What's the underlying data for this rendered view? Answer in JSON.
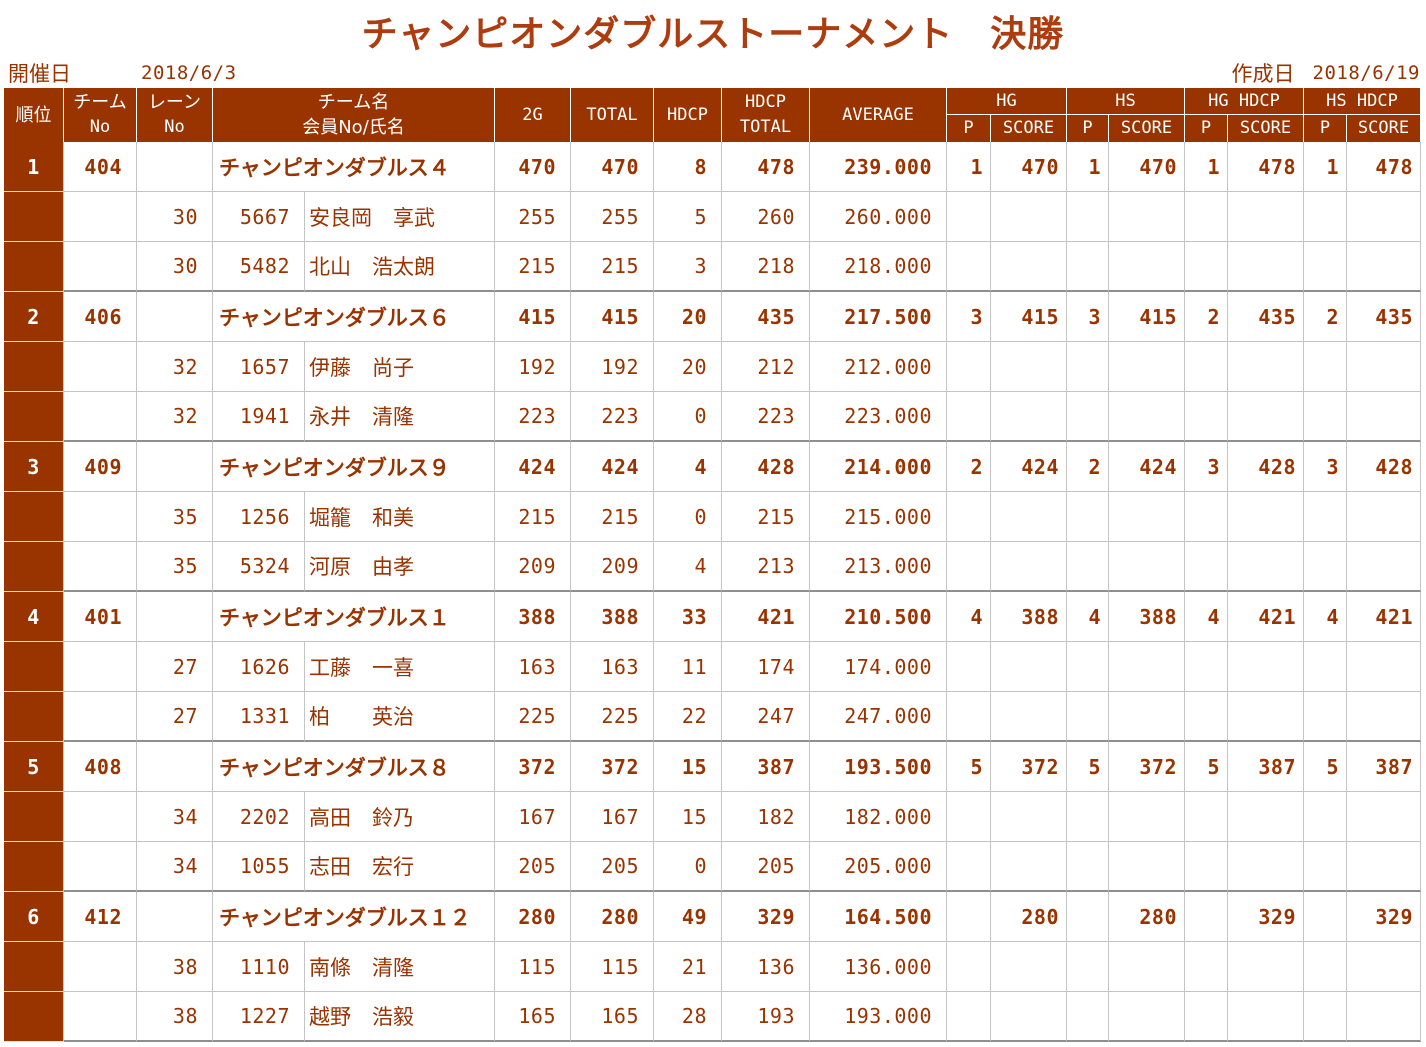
{
  "title": "チャンピオンダブルストーナメント　決勝",
  "meta": {
    "held_label": "開催日",
    "held_date": "2018/6/3",
    "created_label": "作成日",
    "created_date": "2018/6/19"
  },
  "colors": {
    "title": "#AD3D0E",
    "header_bg": "#993300",
    "text": "#993300",
    "grid_line": "#C4C4C4",
    "team_separator": "#8F8F8F"
  },
  "header": {
    "rank": "順位",
    "team_no": [
      "チーム",
      "No"
    ],
    "lane_no": [
      "レーン",
      "No"
    ],
    "name": [
      "チーム名",
      "会員No/氏名"
    ],
    "g2": "2G",
    "total": "TOTAL",
    "hdcp": "HDCP",
    "hdcp_total": [
      "HDCP",
      "TOTAL"
    ],
    "average": "AVERAGE",
    "groups": {
      "hg": "HG",
      "hs": "HS",
      "hgh": "HG HDCP",
      "hsh": "HS HDCP"
    },
    "p": "P",
    "score": "SCORE"
  },
  "teams": [
    {
      "rank": "1",
      "team_no": "404",
      "name": "チャンピオンダブルス４",
      "g2": "470",
      "total": "470",
      "hdcp": "8",
      "hdcp_total": "478",
      "average": "239.000",
      "hg": {
        "p": "1",
        "score": "470"
      },
      "hs": {
        "p": "1",
        "score": "470"
      },
      "hgh": {
        "p": "1",
        "score": "478"
      },
      "hsh": {
        "p": "1",
        "score": "478"
      },
      "members": [
        {
          "lane": "30",
          "member_no": "5667",
          "name": "安良岡　享武",
          "g2": "255",
          "total": "255",
          "hdcp": "5",
          "hdcp_total": "260",
          "average": "260.000"
        },
        {
          "lane": "30",
          "member_no": "5482",
          "name": "北山　浩太朗",
          "g2": "215",
          "total": "215",
          "hdcp": "3",
          "hdcp_total": "218",
          "average": "218.000"
        }
      ]
    },
    {
      "rank": "2",
      "team_no": "406",
      "name": "チャンピオンダブルス６",
      "g2": "415",
      "total": "415",
      "hdcp": "20",
      "hdcp_total": "435",
      "average": "217.500",
      "hg": {
        "p": "3",
        "score": "415"
      },
      "hs": {
        "p": "3",
        "score": "415"
      },
      "hgh": {
        "p": "2",
        "score": "435"
      },
      "hsh": {
        "p": "2",
        "score": "435"
      },
      "members": [
        {
          "lane": "32",
          "member_no": "1657",
          "name": "伊藤　尚子",
          "g2": "192",
          "total": "192",
          "hdcp": "20",
          "hdcp_total": "212",
          "average": "212.000"
        },
        {
          "lane": "32",
          "member_no": "1941",
          "name": "永井　清隆",
          "g2": "223",
          "total": "223",
          "hdcp": "0",
          "hdcp_total": "223",
          "average": "223.000"
        }
      ]
    },
    {
      "rank": "3",
      "team_no": "409",
      "name": "チャンピオンダブルス９",
      "g2": "424",
      "total": "424",
      "hdcp": "4",
      "hdcp_total": "428",
      "average": "214.000",
      "hg": {
        "p": "2",
        "score": "424"
      },
      "hs": {
        "p": "2",
        "score": "424"
      },
      "hgh": {
        "p": "3",
        "score": "428"
      },
      "hsh": {
        "p": "3",
        "score": "428"
      },
      "members": [
        {
          "lane": "35",
          "member_no": "1256",
          "name": "堀籠　和美",
          "g2": "215",
          "total": "215",
          "hdcp": "0",
          "hdcp_total": "215",
          "average": "215.000"
        },
        {
          "lane": "35",
          "member_no": "5324",
          "name": "河原　由孝",
          "g2": "209",
          "total": "209",
          "hdcp": "4",
          "hdcp_total": "213",
          "average": "213.000"
        }
      ]
    },
    {
      "rank": "4",
      "team_no": "401",
      "name": "チャンピオンダブルス１",
      "g2": "388",
      "total": "388",
      "hdcp": "33",
      "hdcp_total": "421",
      "average": "210.500",
      "hg": {
        "p": "4",
        "score": "388"
      },
      "hs": {
        "p": "4",
        "score": "388"
      },
      "hgh": {
        "p": "4",
        "score": "421"
      },
      "hsh": {
        "p": "4",
        "score": "421"
      },
      "members": [
        {
          "lane": "27",
          "member_no": "1626",
          "name": "工藤　一喜",
          "g2": "163",
          "total": "163",
          "hdcp": "11",
          "hdcp_total": "174",
          "average": "174.000"
        },
        {
          "lane": "27",
          "member_no": "1331",
          "name": "柏　　英治",
          "g2": "225",
          "total": "225",
          "hdcp": "22",
          "hdcp_total": "247",
          "average": "247.000"
        }
      ]
    },
    {
      "rank": "5",
      "team_no": "408",
      "name": "チャンピオンダブルス８",
      "g2": "372",
      "total": "372",
      "hdcp": "15",
      "hdcp_total": "387",
      "average": "193.500",
      "hg": {
        "p": "5",
        "score": "372"
      },
      "hs": {
        "p": "5",
        "score": "372"
      },
      "hgh": {
        "p": "5",
        "score": "387"
      },
      "hsh": {
        "p": "5",
        "score": "387"
      },
      "members": [
        {
          "lane": "34",
          "member_no": "2202",
          "name": "高田　鈴乃",
          "g2": "167",
          "total": "167",
          "hdcp": "15",
          "hdcp_total": "182",
          "average": "182.000"
        },
        {
          "lane": "34",
          "member_no": "1055",
          "name": "志田　宏行",
          "g2": "205",
          "total": "205",
          "hdcp": "0",
          "hdcp_total": "205",
          "average": "205.000"
        }
      ]
    },
    {
      "rank": "6",
      "team_no": "412",
      "name": "チャンピオンダブルス１２",
      "g2": "280",
      "total": "280",
      "hdcp": "49",
      "hdcp_total": "329",
      "average": "164.500",
      "hg": {
        "score": "280"
      },
      "hs": {
        "score": "280"
      },
      "hgh": {
        "score": "329"
      },
      "hsh": {
        "score": "329"
      },
      "members": [
        {
          "lane": "38",
          "member_no": "1110",
          "name": "南條　清隆",
          "g2": "115",
          "total": "115",
          "hdcp": "21",
          "hdcp_total": "136",
          "average": "136.000"
        },
        {
          "lane": "38",
          "member_no": "1227",
          "name": "越野　浩毅",
          "g2": "165",
          "total": "165",
          "hdcp": "28",
          "hdcp_total": "193",
          "average": "193.000"
        }
      ]
    }
  ]
}
